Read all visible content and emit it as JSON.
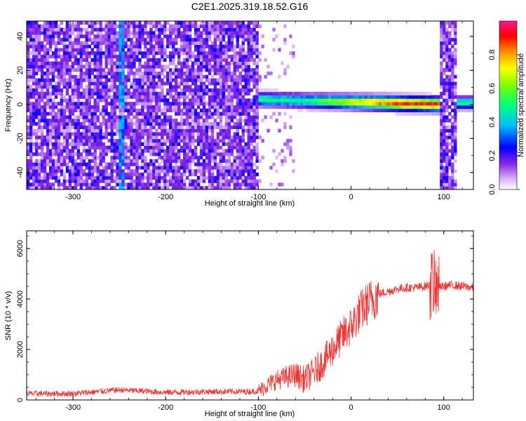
{
  "title": "C2E1.2025.319.18.52.G16",
  "chart_data": [
    {
      "type": "heatmap",
      "xlabel": "Height of straight line (km)",
      "ylabel": "Frequency (Hz)",
      "xlim": [
        -350,
        132
      ],
      "ylim": [
        -50,
        49
      ],
      "xticks": [
        "-300",
        "-200",
        "-100",
        "0",
        "100"
      ],
      "yticks": [
        "-40",
        "-20",
        "0",
        "20",
        "40"
      ],
      "colorbar": {
        "label": "Normalized spectral amplitude",
        "ticks": [
          "0.0",
          "0.2",
          "0.4",
          "0.6",
          "0.8"
        ],
        "range": [
          0,
          1
        ],
        "colormap": [
          "#ffffff",
          "#8a2be2",
          "#0000ff",
          "#00bfff",
          "#00ff7f",
          "#ffff00",
          "#ff8c00",
          "#ff0000",
          "#ff1493"
        ]
      },
      "regions": [
        {
          "x": [
            -350,
            -100
          ],
          "description": "broadband noise, amplitude ~0.1-0.2"
        },
        {
          "x": [
            -100,
            95
          ],
          "center_frequency": [
            3,
            0
          ],
          "peak_amplitude": 0.9
        },
        {
          "x": [
            95,
            115
          ],
          "description": "broadband noise"
        },
        {
          "x": [
            115,
            132
          ],
          "center_frequency": 1,
          "peak_amplitude": 0.5
        }
      ]
    },
    {
      "type": "line",
      "xlabel": "Height of straight line (km)",
      "ylabel": "SNR (10 * v/v)",
      "xlim": [
        -350,
        132
      ],
      "ylim": [
        0,
        6700
      ],
      "xticks": [
        "-300",
        "-200",
        "-100",
        "0",
        "100"
      ],
      "yticks": [
        "0",
        "2000",
        "4000",
        "6000"
      ],
      "series": [
        {
          "color": "#ee3333",
          "x": [
            -350,
            -330,
            -300,
            -250,
            -200,
            -150,
            -110,
            -100,
            -90,
            -80,
            -70,
            -60,
            -50,
            -40,
            -30,
            -20,
            -10,
            0,
            10,
            20,
            30,
            40,
            50,
            60,
            70,
            80,
            88,
            90,
            95,
            100,
            110,
            120,
            132
          ],
          "y": [
            250,
            250,
            250,
            400,
            300,
            330,
            330,
            350,
            600,
            800,
            900,
            1000,
            800,
            1100,
            1500,
            2000,
            2500,
            2900,
            3500,
            3900,
            4200,
            4300,
            4400,
            4450,
            4450,
            4500,
            4600,
            4400,
            4450,
            4500,
            4550,
            4500,
            4450
          ]
        }
      ]
    }
  ]
}
